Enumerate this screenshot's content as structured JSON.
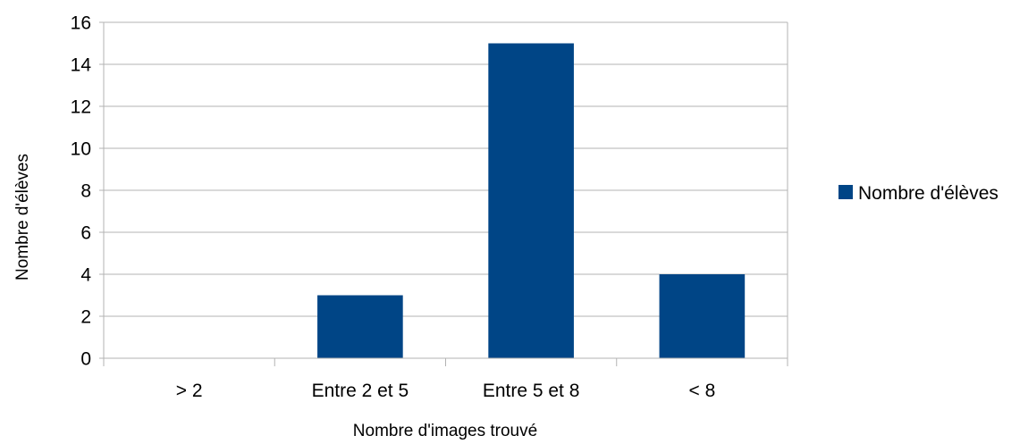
{
  "chart_data": {
    "type": "bar",
    "title": "",
    "xlabel": "Nombre d'images trouvé",
    "ylabel": "Nombre d'élèves",
    "categories": [
      "> 2",
      "Entre 2 et 5",
      "Entre 5 et 8",
      "< 8"
    ],
    "series": [
      {
        "name": "Nombre d'élèves",
        "values": [
          0,
          3,
          15,
          4
        ],
        "color": "#004586"
      }
    ],
    "ylim": [
      0,
      16
    ],
    "yticks": [
      0,
      2,
      4,
      6,
      8,
      10,
      12,
      14,
      16
    ],
    "grid": true,
    "legend_position": "right"
  }
}
